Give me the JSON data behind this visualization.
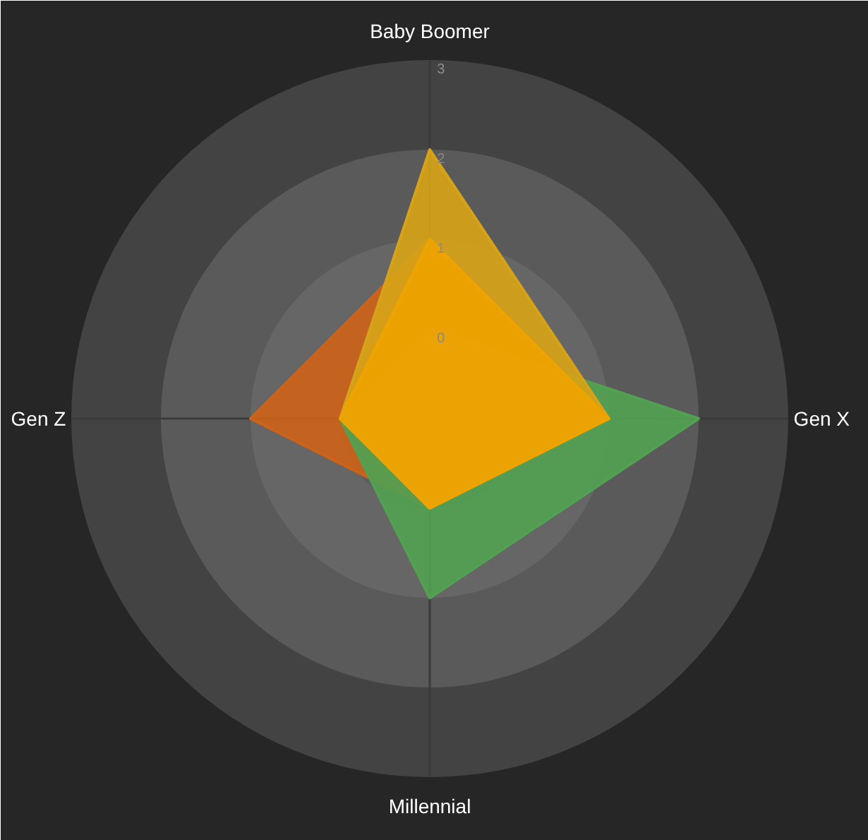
{
  "chart_data": {
    "type": "radar",
    "categories": [
      "Baby Boomer",
      "Gen X",
      "Millennial",
      "Gen Z"
    ],
    "ylim": [
      -1,
      3
    ],
    "yticks": [
      0,
      1,
      2,
      3
    ],
    "series": [
      {
        "color": "#cc6319",
        "values": [
          1,
          1,
          0,
          1
        ]
      },
      {
        "color": "#52a052",
        "values": [
          0,
          2,
          1,
          0
        ]
      },
      {
        "color": "#d6a318",
        "values": [
          2,
          1,
          0,
          0
        ]
      },
      {
        "color": "#eda300",
        "values": [
          1,
          1,
          0,
          0
        ]
      }
    ]
  }
}
